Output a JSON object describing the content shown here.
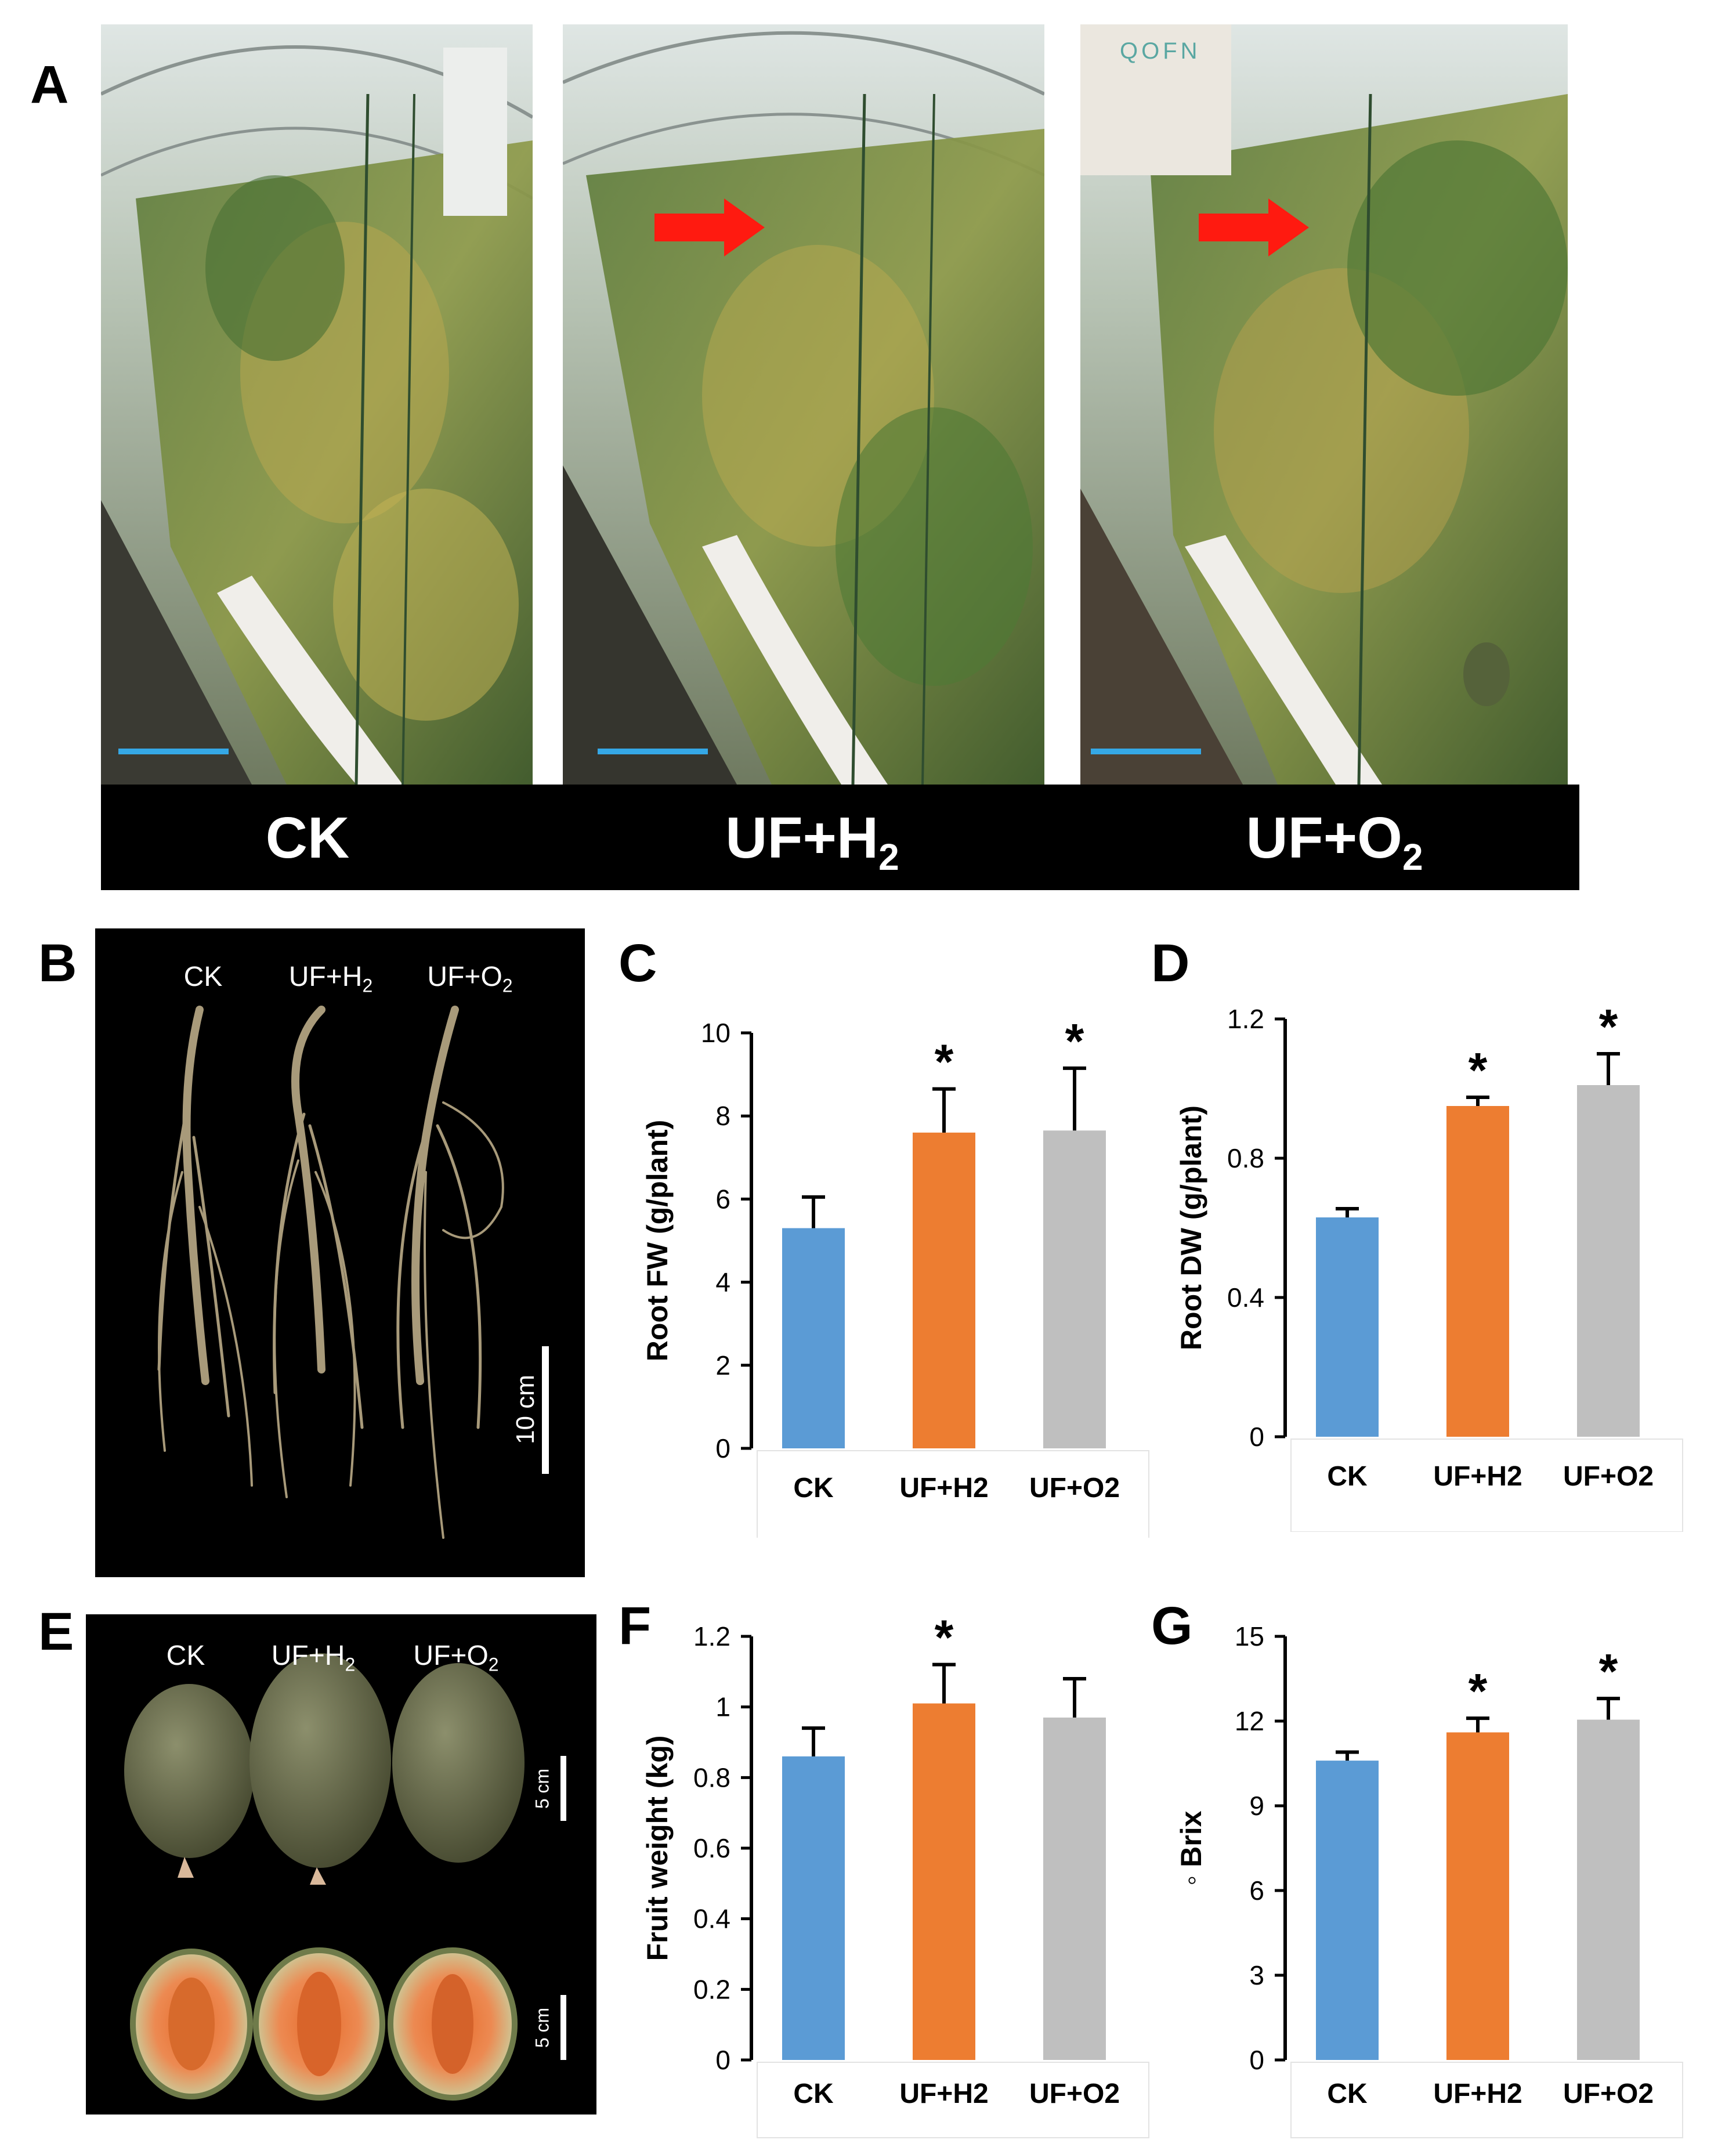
{
  "panel_a": {
    "letter": "A",
    "labels": [
      {
        "base": "CK",
        "sub": ""
      },
      {
        "base": "UF+H",
        "sub": "2"
      },
      {
        "base": "UF+O",
        "sub": "2"
      }
    ],
    "device_text": "QOFN"
  },
  "panel_b": {
    "letter": "B",
    "labels": [
      {
        "base": "CK",
        "sub": ""
      },
      {
        "base": "UF+H",
        "sub": "2"
      },
      {
        "base": "UF+O",
        "sub": "2"
      }
    ],
    "scale_text": "10 cm"
  },
  "panel_e": {
    "letter": "E",
    "labels": [
      {
        "base": "CK",
        "sub": ""
      },
      {
        "base": "UF+H",
        "sub": "2"
      },
      {
        "base": "UF+O",
        "sub": "2"
      }
    ],
    "scale_top": "5 cm",
    "scale_bottom": "5 cm"
  },
  "colors": {
    "ck": "#5b9bd5",
    "uf_h2": "#ed7d31",
    "uf_o2": "#bfbfbf",
    "scale_bar_blue": "#35a8e6"
  },
  "chart_data": [
    {
      "panel": "C",
      "type": "bar",
      "categories": [
        "CK",
        "UF+H2",
        "UF+O2"
      ],
      "values": [
        5.3,
        7.6,
        7.65
      ],
      "errors": [
        0.75,
        1.05,
        1.5
      ],
      "significance": [
        "",
        "*",
        "*"
      ],
      "ylabel": "Root FW (g/plant)",
      "ylim": [
        0,
        10
      ],
      "yticks": [
        "0",
        "2",
        "4",
        "6",
        "8",
        "10"
      ]
    },
    {
      "panel": "D",
      "type": "bar",
      "categories": [
        "CK",
        "UF+H2",
        "UF+O2"
      ],
      "values": [
        0.63,
        0.95,
        1.01
      ],
      "errors": [
        0.025,
        0.025,
        0.09
      ],
      "significance": [
        "",
        "*",
        "*"
      ],
      "ylabel": "Root DW (g/plant)",
      "ylim": [
        0,
        1.2
      ],
      "yticks": [
        "0",
        "0.4",
        "0.8",
        "1.2"
      ]
    },
    {
      "panel": "F",
      "type": "bar",
      "categories": [
        "CK",
        "UF+H2",
        "UF+O2"
      ],
      "values": [
        0.86,
        1.01,
        0.97
      ],
      "errors": [
        0.08,
        0.11,
        0.11
      ],
      "significance": [
        "",
        "*",
        ""
      ],
      "ylabel": "Fruit weight (kg)",
      "ylim": [
        0,
        1.2
      ],
      "yticks": [
        "0",
        "0.2",
        "0.4",
        "0.6",
        "0.8",
        "1",
        "1.2"
      ]
    },
    {
      "panel": "G",
      "type": "bar",
      "categories": [
        "CK",
        "UF+H2",
        "UF+O2"
      ],
      "values": [
        10.6,
        11.6,
        12.05
      ],
      "errors": [
        0.3,
        0.5,
        0.75
      ],
      "significance": [
        "",
        "*",
        "*"
      ],
      "ylabel": "◦ Brix",
      "ylim": [
        0,
        15
      ],
      "yticks": [
        "0",
        "3",
        "6",
        "9",
        "12",
        "15"
      ]
    }
  ]
}
